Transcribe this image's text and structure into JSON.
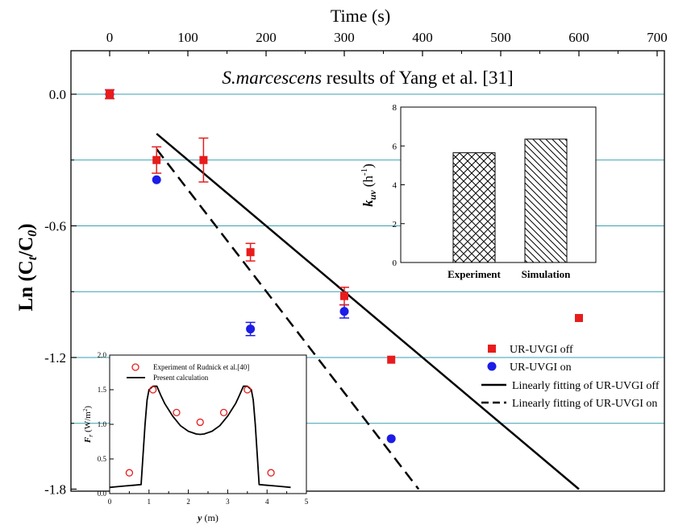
{
  "chart_data": [
    {
      "type": "scatter",
      "title": "S.marcescens results of Yang et al. [31]",
      "title_italic_part": "S.marcescens",
      "title_rest": " results of Yang et al. [31]",
      "xlabel": "Time (s)",
      "ylabel_main": "Ln (C",
      "ylabel_sub1": "t",
      "ylabel_mid": "/C",
      "ylabel_sub2": "0",
      "ylabel_end": ")",
      "xlim": [
        -60,
        700
      ],
      "ylim": [
        -1.8,
        0.2
      ],
      "x_ticks": [
        "0",
        "100",
        "200",
        "300",
        "400",
        "500",
        "600",
        "700"
      ],
      "y_ticks": [
        "0.0",
        "-0.6",
        "-1.2",
        "-1.8"
      ],
      "x_tick_values": [
        0,
        100,
        200,
        300,
        400,
        500,
        600,
        700
      ],
      "y_tick_values": [
        0.0,
        -0.6,
        -1.2,
        -1.8
      ],
      "gridlines_y": [
        0.0,
        -0.3,
        -0.6,
        -0.9,
        -1.2,
        -1.5
      ],
      "grid_color": "#3a9fb0",
      "series": [
        {
          "name": "UR-UVGI off",
          "marker": "square",
          "color": "#e81c1c",
          "x": [
            0,
            60,
            120,
            180,
            300,
            360,
            600
          ],
          "y": [
            0.0,
            -0.3,
            -0.3,
            -0.72,
            -0.92,
            -1.21,
            -1.02
          ],
          "err": [
            0.02,
            0.06,
            0.1,
            0.04,
            0.04,
            0.01,
            0.01
          ]
        },
        {
          "name": "UR-UVGI on",
          "marker": "circle",
          "color": "#1c1ce8",
          "x": [
            0,
            60,
            180,
            300,
            360
          ],
          "y": [
            0.0,
            -0.39,
            -1.07,
            -0.99,
            -1.57
          ],
          "err": [
            0.02,
            0.01,
            0.03,
            0.03,
            0.01
          ]
        },
        {
          "name": "Linearly fitting of UR-UVGI off",
          "style": "solid",
          "color": "#000000",
          "x": [
            60,
            600
          ],
          "y": [
            -0.18,
            -1.8
          ]
        },
        {
          "name": "Linearly fitting of UR-UVGI on",
          "style": "dashed",
          "color": "#000000",
          "x": [
            60,
            395
          ],
          "y": [
            -0.25,
            -1.8
          ]
        }
      ]
    },
    {
      "type": "bar",
      "ylabel_main": "k",
      "ylabel_sub": "uv",
      "ylabel_unit": "(h",
      "ylabel_sup": "-1",
      "ylabel_end": ")",
      "categories": [
        "Experiment",
        "Simulation"
      ],
      "values": [
        5.65,
        6.35
      ],
      "ylim": [
        0,
        8
      ],
      "y_ticks": [
        "0",
        "2",
        "4",
        "6",
        "8"
      ],
      "y_tick_values": [
        0,
        2,
        4,
        6,
        8
      ],
      "patterns": [
        "crosshatch",
        "diagonal"
      ]
    },
    {
      "type": "line",
      "xlabel_var": "y",
      "xlabel_unit": " (m)",
      "ylabel_var": "F",
      "ylabel_sub": "r",
      "ylabel_unit": " (W/m",
      "ylabel_sup": "2",
      "ylabel_end": ")",
      "xlim": [
        0,
        5
      ],
      "ylim": [
        0,
        2.0
      ],
      "x_ticks": [
        "0",
        "0.5",
        "1",
        "1.5",
        "2",
        "2.5",
        "3",
        "3.5",
        "4",
        "4.5",
        "5"
      ],
      "x_tick_values": [
        0,
        0.5,
        1,
        1.5,
        2,
        2.5,
        3,
        3.5,
        4,
        4.5,
        5
      ],
      "y_ticks": [
        "0.0",
        "0.5",
        "1.0",
        "1.5",
        "2.0"
      ],
      "y_tick_values": [
        0,
        0.5,
        1.0,
        1.5,
        2.0
      ],
      "series": [
        {
          "name": "Experiment of Rudnick et al.[40]",
          "marker": "open-circle",
          "color": "#e81c1c",
          "x": [
            0.5,
            1.1,
            1.7,
            2.3,
            2.9,
            3.5,
            4.1
          ],
          "y": [
            0.3,
            1.5,
            1.17,
            1.03,
            1.17,
            1.5,
            0.3
          ]
        },
        {
          "name": "Present calculation",
          "style": "solid",
          "color": "#000000",
          "x": [
            0.0,
            0.2,
            0.4,
            0.6,
            0.8,
            0.9,
            0.95,
            1.0,
            1.1,
            1.2,
            1.3,
            1.4,
            1.6,
            1.8,
            2.0,
            2.2,
            2.3,
            2.4,
            2.6,
            2.8,
            3.0,
            3.2,
            3.3,
            3.4,
            3.5,
            3.6,
            3.65,
            3.7,
            3.8,
            4.0,
            4.2,
            4.4,
            4.6
          ],
          "y": [
            0.09,
            0.1,
            0.11,
            0.12,
            0.13,
            1.0,
            1.35,
            1.5,
            1.55,
            1.55,
            1.42,
            1.3,
            1.12,
            0.98,
            0.9,
            0.86,
            0.855,
            0.86,
            0.9,
            0.98,
            1.12,
            1.3,
            1.42,
            1.55,
            1.55,
            1.5,
            1.35,
            1.0,
            0.13,
            0.12,
            0.11,
            0.1,
            0.09
          ]
        }
      ]
    }
  ]
}
